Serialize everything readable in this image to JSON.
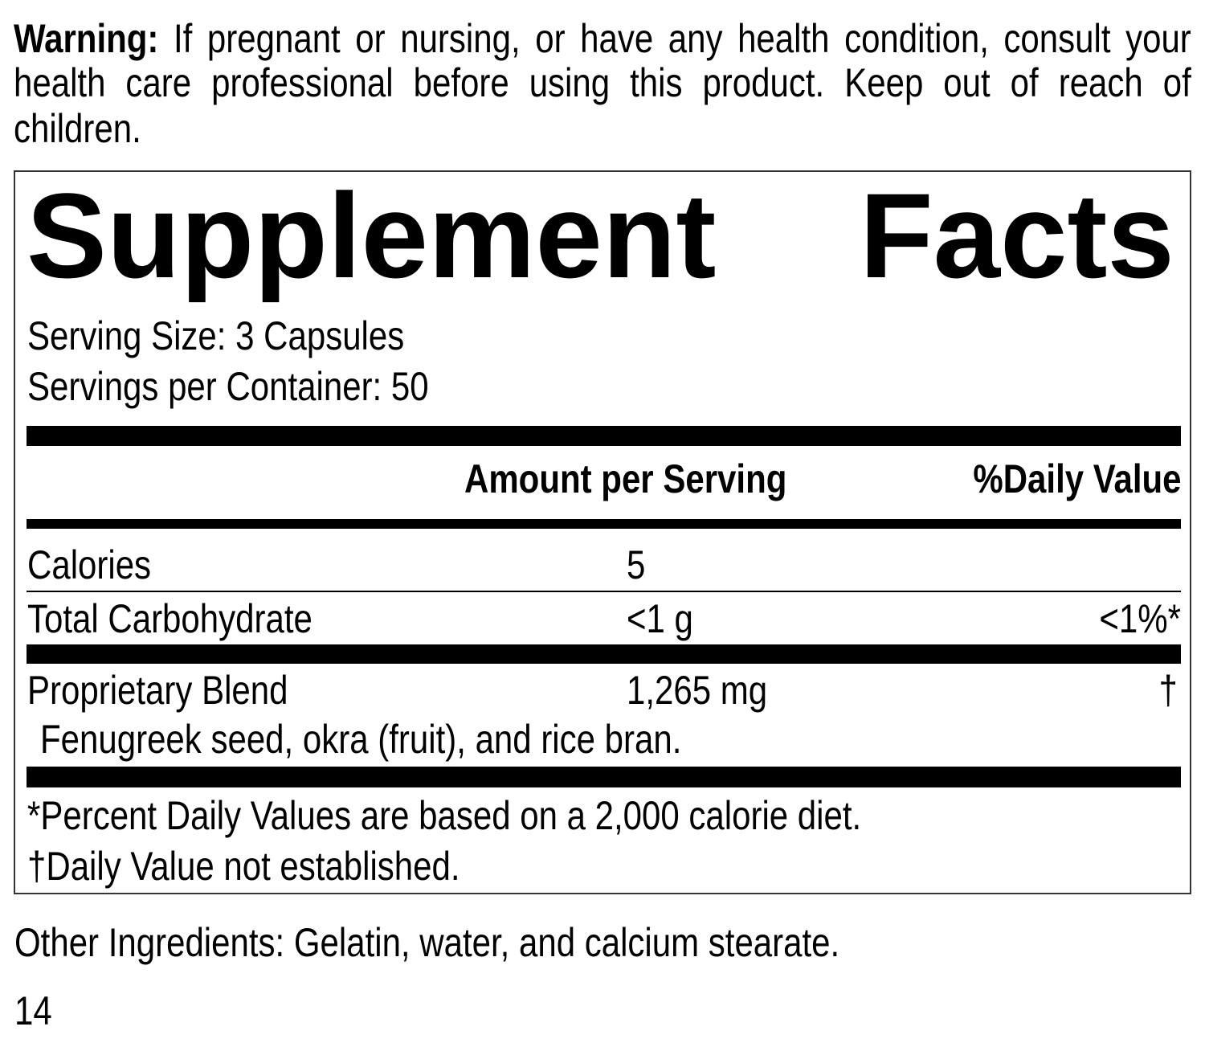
{
  "warning": {
    "label": "Warning:",
    "lines": [
      "If pregnant or nursing, or have any health condition, consult your",
      "health care professional before using this product. Keep out of reach of",
      "children."
    ]
  },
  "facts": {
    "title_word1": "Supplement",
    "title_word2": "Facts",
    "serving_size": "Serving Size: 3 Capsules",
    "servings_per_container": "Servings per Container: 50",
    "header_amount": "Amount per Serving",
    "header_dv": "%Daily Value",
    "rows": [
      {
        "name": "Calories",
        "amount": "5",
        "dv": ""
      },
      {
        "name": "Total Carbohydrate",
        "amount": "<1 g",
        "dv": "<1%*"
      },
      {
        "name": "Proprietary Blend",
        "amount": "1,265 mg",
        "dv": "†"
      }
    ],
    "blend_ingredients": "Fenugreek seed, okra (fruit), and rice bran.",
    "footnote1": "*Percent Daily Values are based on a 2,000 calorie diet.",
    "footnote2": "†Daily Value not established."
  },
  "other_ingredients": "Other Ingredients: Gelatin, water, and calcium stearate.",
  "page_number": "14"
}
